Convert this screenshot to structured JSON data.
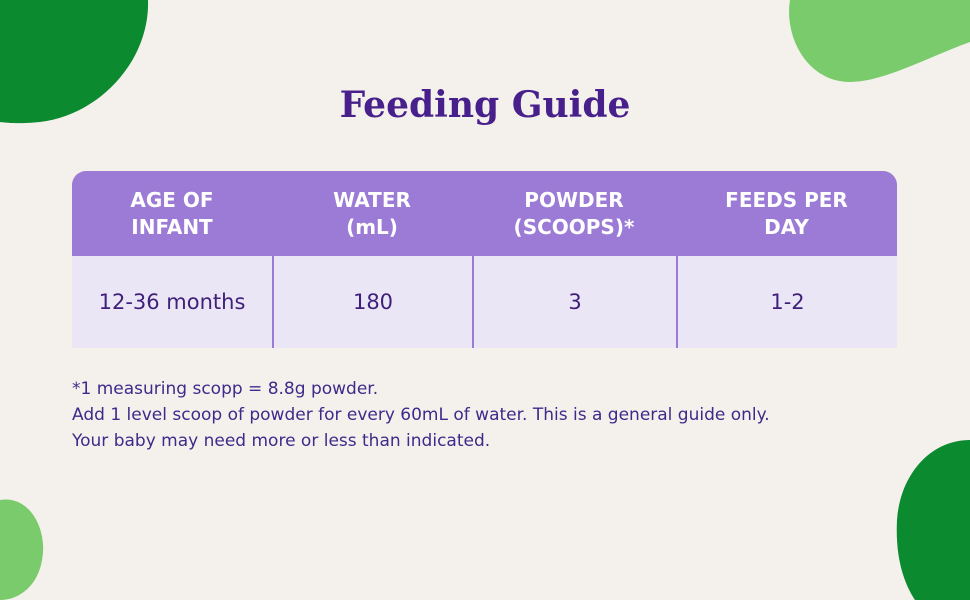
{
  "title": "Feeding Guide",
  "table": {
    "header": [
      [
        "AGE OF",
        "INFANT"
      ],
      [
        "WATER",
        "(mL)"
      ],
      [
        "POWDER",
        "(SCOOPS)*"
      ],
      [
        "FEEDS PER",
        "DAY"
      ]
    ],
    "rows": [
      [
        "12-36 months",
        "180",
        "3",
        "1-2"
      ]
    ]
  },
  "footnote": [
    "*1 measuring scopp = 8.8g powder.",
    "Add 1 level scoop of powder for every 60mL of water. This is a general guide only.",
    "Your baby may need more or less than indicated."
  ]
}
